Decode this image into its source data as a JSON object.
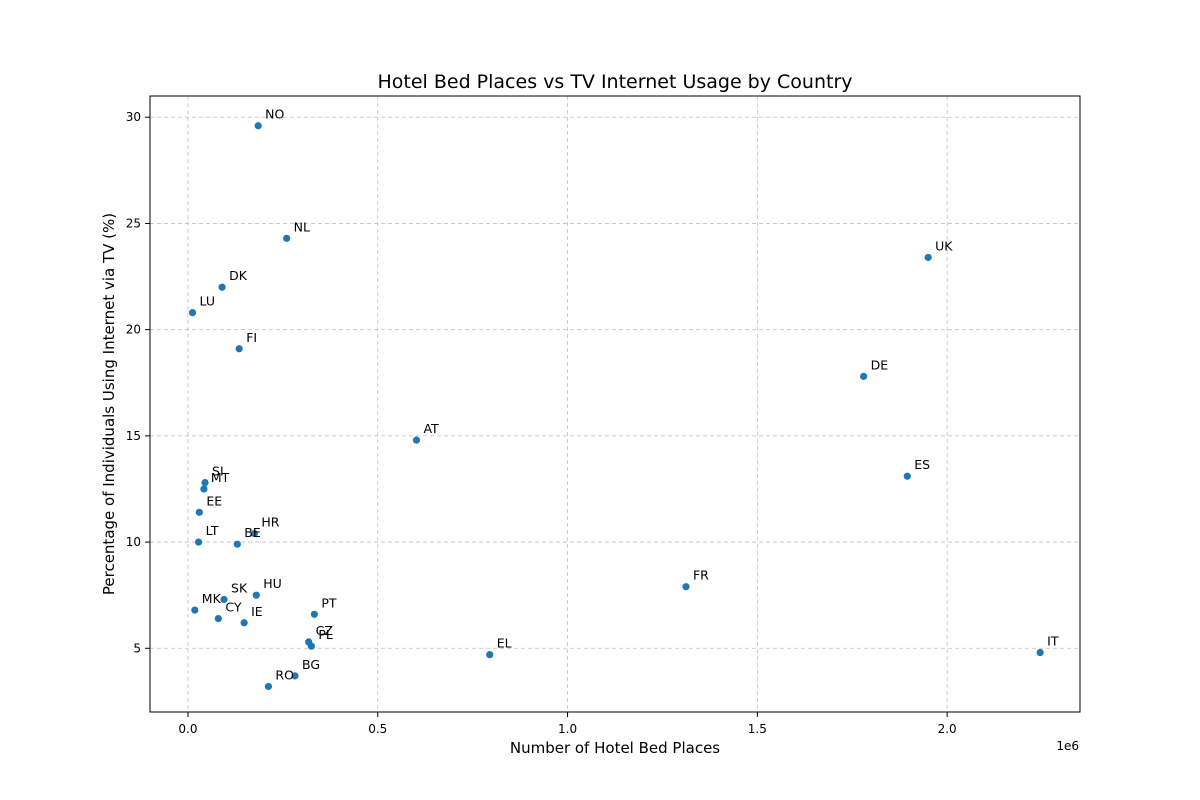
{
  "chart_data": {
    "type": "scatter",
    "title": "Hotel Bed Places vs TV Internet Usage by Country",
    "xlabel": "Number of Hotel Bed Places",
    "ylabel": "Percentage of Individuals Using Internet via TV (%)",
    "x_offset_label": "1e6",
    "xlim": [
      -100000,
      2350000
    ],
    "ylim": [
      2,
      31
    ],
    "xticks": [
      {
        "value": 0,
        "label": "0.0"
      },
      {
        "value": 500000,
        "label": "0.5"
      },
      {
        "value": 1000000,
        "label": "1.0"
      },
      {
        "value": 1500000,
        "label": "1.5"
      },
      {
        "value": 2000000,
        "label": "2.0"
      }
    ],
    "yticks": [
      {
        "value": 5,
        "label": "5"
      },
      {
        "value": 10,
        "label": "10"
      },
      {
        "value": 15,
        "label": "15"
      },
      {
        "value": 20,
        "label": "20"
      },
      {
        "value": 25,
        "label": "25"
      },
      {
        "value": 30,
        "label": "30"
      }
    ],
    "grid": true,
    "marker_color": "#1f77b4",
    "points": [
      {
        "label": "NO",
        "x": 185000,
        "y": 29.6
      },
      {
        "label": "NL",
        "x": 260000,
        "y": 24.3
      },
      {
        "label": "UK",
        "x": 1950000,
        "y": 23.4
      },
      {
        "label": "DK",
        "x": 90000,
        "y": 22.0
      },
      {
        "label": "LU",
        "x": 12000,
        "y": 20.8
      },
      {
        "label": "FI",
        "x": 135000,
        "y": 19.1
      },
      {
        "label": "DE",
        "x": 1780000,
        "y": 17.8
      },
      {
        "label": "AT",
        "x": 602000,
        "y": 14.8
      },
      {
        "label": "ES",
        "x": 1895000,
        "y": 13.1
      },
      {
        "label": "SI",
        "x": 45000,
        "y": 12.8
      },
      {
        "label": "MT",
        "x": 42000,
        "y": 12.5
      },
      {
        "label": "EE",
        "x": 30000,
        "y": 11.4
      },
      {
        "label": "HR",
        "x": 175000,
        "y": 10.4
      },
      {
        "label": "BE",
        "x": 130000,
        "y": 9.9
      },
      {
        "label": "LT",
        "x": 28000,
        "y": 10.0
      },
      {
        "label": "FR",
        "x": 1312000,
        "y": 7.9
      },
      {
        "label": "HU",
        "x": 180000,
        "y": 7.5
      },
      {
        "label": "SK",
        "x": 95000,
        "y": 7.3
      },
      {
        "label": "MK",
        "x": 18000,
        "y": 6.8
      },
      {
        "label": "CY",
        "x": 80000,
        "y": 6.4
      },
      {
        "label": "PT",
        "x": 333000,
        "y": 6.6
      },
      {
        "label": "IE",
        "x": 148000,
        "y": 6.2
      },
      {
        "label": "CZ",
        "x": 318000,
        "y": 5.3
      },
      {
        "label": "PL",
        "x": 325000,
        "y": 5.1
      },
      {
        "label": "EL",
        "x": 795000,
        "y": 4.7
      },
      {
        "label": "IT",
        "x": 2245000,
        "y": 4.8
      },
      {
        "label": "BG",
        "x": 282000,
        "y": 3.7
      },
      {
        "label": "RO",
        "x": 212000,
        "y": 3.2
      }
    ]
  }
}
